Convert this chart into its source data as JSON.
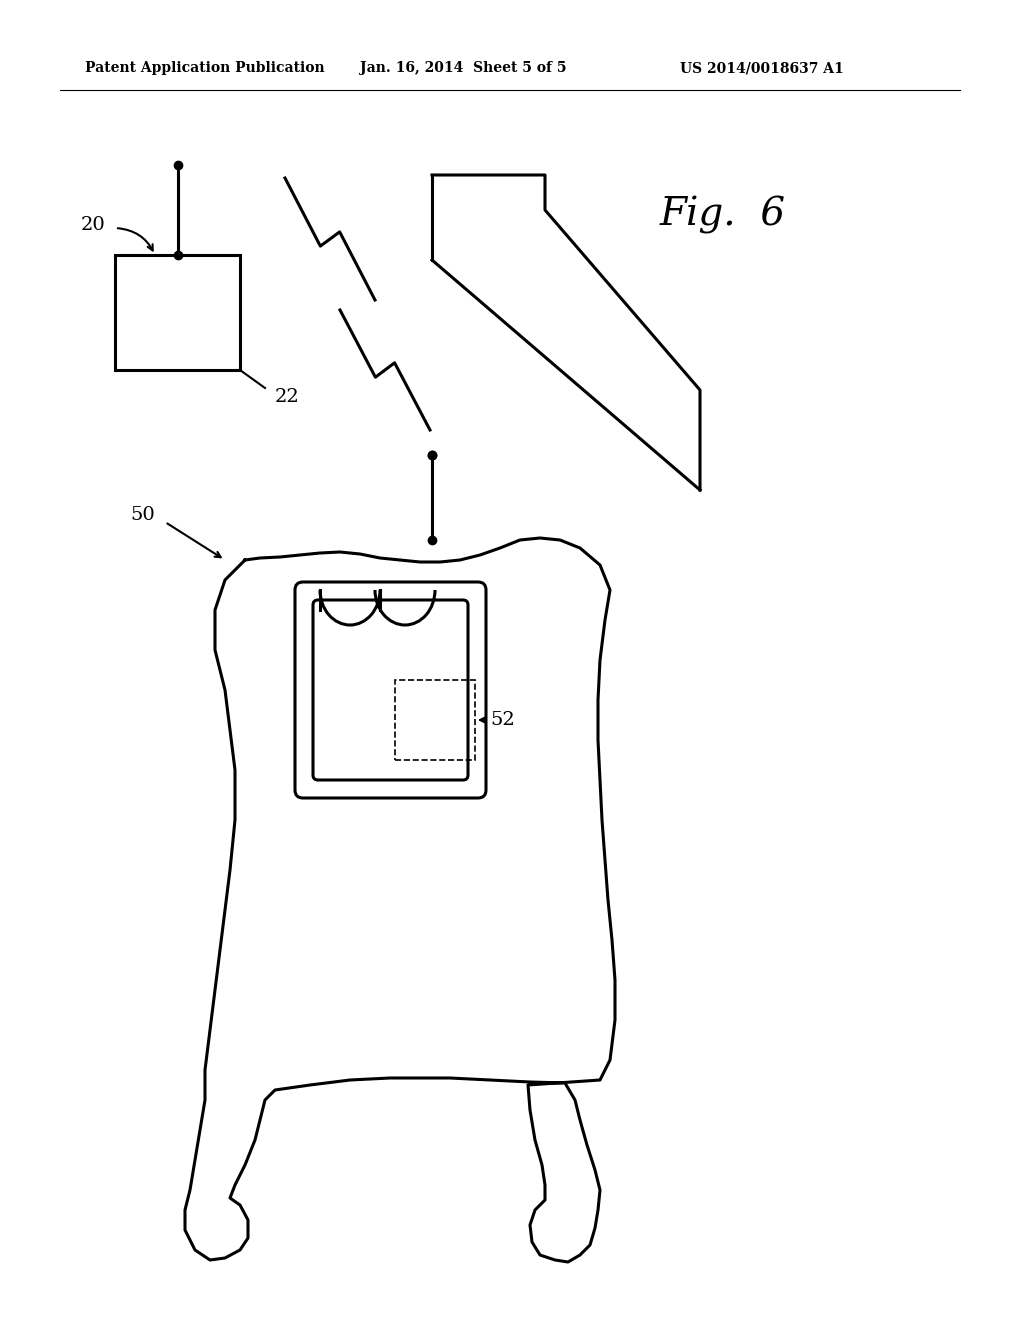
{
  "background_color": "#ffffff",
  "header_left": "Patent Application Publication",
  "header_mid": "Jan. 16, 2014  Sheet 5 of 5",
  "header_right": "US 2014/0018637 A1",
  "fig_label": "Fig.  6",
  "label_20": "20",
  "label_22": "22",
  "label_50": "50",
  "label_52": "52"
}
